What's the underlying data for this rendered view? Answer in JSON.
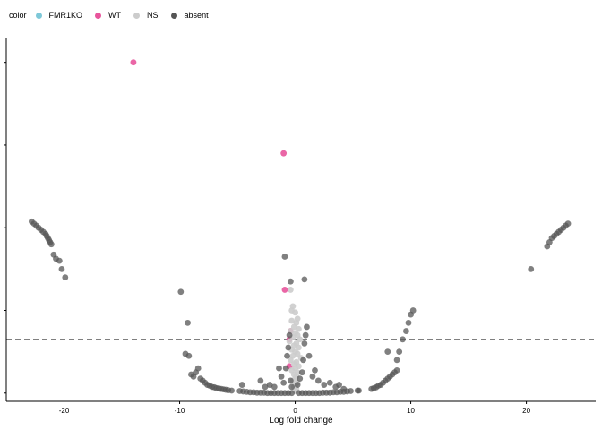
{
  "chart_data": {
    "type": "scatter",
    "title": "",
    "xlabel": "Log fold change",
    "ylabel": "",
    "xlim": [
      -25,
      26
    ],
    "ylim": [
      -0.2,
      8.6
    ],
    "x_ticks": [
      -20,
      -10,
      0,
      10,
      20
    ],
    "y_ticks": [
      0,
      2,
      4,
      6,
      8
    ],
    "y_tick_labels_visible": false,
    "threshold_line": {
      "y": 1.3,
      "style": "dashed"
    },
    "legend": {
      "title": "color",
      "placement": "top-left",
      "entries": [
        {
          "label": "FMR1KO",
          "color": "#7ec8d8"
        },
        {
          "label": "WT",
          "color": "#e8559c"
        },
        {
          "label": "NS",
          "color": "#cccccc"
        },
        {
          "label": "absent",
          "color": "#555555"
        }
      ]
    },
    "series": [
      {
        "name": "WT",
        "color": "#e8559c",
        "points": [
          [
            -14.0,
            8.0
          ],
          [
            -1.0,
            5.8
          ],
          [
            -0.9,
            2.5
          ],
          [
            -0.4,
            1.5
          ],
          [
            -0.5,
            1.3
          ],
          [
            -0.5,
            0.65
          ]
        ]
      },
      {
        "name": "NS",
        "color": "#cccccc",
        "points": [
          [
            -0.4,
            2.5
          ],
          [
            -0.2,
            2.1
          ],
          [
            -0.3,
            2.0
          ],
          [
            0.0,
            1.95
          ],
          [
            0.2,
            1.8
          ],
          [
            -0.3,
            1.75
          ],
          [
            0.1,
            1.7
          ],
          [
            -0.1,
            1.6
          ],
          [
            0.3,
            1.55
          ],
          [
            -0.4,
            1.5
          ],
          [
            0.0,
            1.45
          ],
          [
            0.2,
            1.4
          ],
          [
            -0.2,
            1.35
          ],
          [
            0.4,
            1.3
          ],
          [
            -0.5,
            1.25
          ],
          [
            0.1,
            1.2
          ],
          [
            -0.1,
            1.15
          ],
          [
            0.3,
            1.1
          ],
          [
            -0.3,
            1.05
          ],
          [
            0.0,
            1.0
          ],
          [
            0.2,
            0.95
          ],
          [
            -0.2,
            0.9
          ],
          [
            0.5,
            0.85
          ],
          [
            -0.4,
            0.8
          ],
          [
            0.1,
            0.75
          ],
          [
            -0.1,
            0.7
          ],
          [
            0.3,
            0.65
          ],
          [
            0.0,
            0.6
          ],
          [
            -0.3,
            0.55
          ],
          [
            0.2,
            0.5
          ],
          [
            -0.1,
            0.45
          ],
          [
            0.1,
            0.4
          ],
          [
            0.0,
            0.35
          ],
          [
            -0.2,
            0.3
          ],
          [
            0.2,
            0.25
          ],
          [
            0.0,
            0.2
          ],
          [
            -0.1,
            0.15
          ],
          [
            0.1,
            0.1
          ],
          [
            0.0,
            0.05
          ]
        ]
      },
      {
        "name": "absent",
        "color": "#555555",
        "points": [
          [
            -22.8,
            4.15
          ],
          [
            -22.6,
            4.1
          ],
          [
            -22.4,
            4.05
          ],
          [
            -22.2,
            4.0
          ],
          [
            -22.0,
            3.95
          ],
          [
            -21.8,
            3.9
          ],
          [
            -21.6,
            3.85
          ],
          [
            -21.5,
            3.8
          ],
          [
            -21.4,
            3.75
          ],
          [
            -21.3,
            3.7
          ],
          [
            -21.2,
            3.65
          ],
          [
            -21.1,
            3.6
          ],
          [
            -20.9,
            3.35
          ],
          [
            -20.7,
            3.25
          ],
          [
            -20.4,
            3.2
          ],
          [
            -20.2,
            3.0
          ],
          [
            -19.9,
            2.8
          ],
          [
            -9.9,
            2.45
          ],
          [
            -9.3,
            1.7
          ],
          [
            -9.5,
            0.95
          ],
          [
            -9.2,
            0.9
          ],
          [
            -9.0,
            0.45
          ],
          [
            -8.8,
            0.4
          ],
          [
            -8.6,
            0.5
          ],
          [
            -8.4,
            0.6
          ],
          [
            -8.2,
            0.35
          ],
          [
            -8.0,
            0.3
          ],
          [
            -7.8,
            0.25
          ],
          [
            -7.6,
            0.2
          ],
          [
            -7.4,
            0.18
          ],
          [
            -7.2,
            0.15
          ],
          [
            -7.0,
            0.14
          ],
          [
            -6.8,
            0.12
          ],
          [
            -6.6,
            0.11
          ],
          [
            -6.4,
            0.1
          ],
          [
            -6.2,
            0.09
          ],
          [
            -6.0,
            0.08
          ],
          [
            -5.8,
            0.07
          ],
          [
            -5.5,
            0.06
          ],
          [
            -4.8,
            0.05
          ],
          [
            -4.5,
            0.04
          ],
          [
            -4.2,
            0.03
          ],
          [
            -3.9,
            0.02
          ],
          [
            -3.6,
            0.02
          ],
          [
            -3.3,
            0.01
          ],
          [
            -3.0,
            0.01
          ],
          [
            -2.7,
            0.01
          ],
          [
            -2.4,
            0.0
          ],
          [
            -2.1,
            0.0
          ],
          [
            -1.8,
            0.0
          ],
          [
            -1.5,
            0.0
          ],
          [
            -1.2,
            0.0
          ],
          [
            -0.9,
            0.0
          ],
          [
            -0.6,
            0.0
          ],
          [
            -0.3,
            0.0
          ],
          [
            0.3,
            0.0
          ],
          [
            0.6,
            0.0
          ],
          [
            0.9,
            0.0
          ],
          [
            1.2,
            0.0
          ],
          [
            1.5,
            0.0
          ],
          [
            1.8,
            0.0
          ],
          [
            2.1,
            0.0
          ],
          [
            2.4,
            0.01
          ],
          [
            2.7,
            0.01
          ],
          [
            3.0,
            0.01
          ],
          [
            3.3,
            0.02
          ],
          [
            3.6,
            0.02
          ],
          [
            3.9,
            0.03
          ],
          [
            4.2,
            0.03
          ],
          [
            4.5,
            0.04
          ],
          [
            4.8,
            0.05
          ],
          [
            5.5,
            0.06
          ],
          [
            -4.6,
            0.2
          ],
          [
            -3.0,
            0.3
          ],
          [
            -2.2,
            0.2
          ],
          [
            -1.8,
            0.15
          ],
          [
            -1.2,
            0.4
          ],
          [
            -1.0,
            0.25
          ],
          [
            -0.8,
            0.6
          ],
          [
            -0.7,
            0.9
          ],
          [
            -0.6,
            1.1
          ],
          [
            -0.5,
            1.4
          ],
          [
            -0.4,
            0.3
          ],
          [
            -0.3,
            0.15
          ],
          [
            0.2,
            0.2
          ],
          [
            0.4,
            0.35
          ],
          [
            0.6,
            0.5
          ],
          [
            0.7,
            0.8
          ],
          [
            0.8,
            1.2
          ],
          [
            0.9,
            1.4
          ],
          [
            1.0,
            1.6
          ],
          [
            1.2,
            0.9
          ],
          [
            1.5,
            0.4
          ],
          [
            2.0,
            0.3
          ],
          [
            2.5,
            0.2
          ],
          [
            3.0,
            0.25
          ],
          [
            3.5,
            0.15
          ],
          [
            3.8,
            0.2
          ],
          [
            4.2,
            0.1
          ],
          [
            -1.4,
            0.6
          ],
          [
            -2.6,
            0.15
          ],
          [
            1.7,
            0.55
          ],
          [
            -0.9,
            3.3
          ],
          [
            0.8,
            2.75
          ],
          [
            -0.4,
            2.7
          ],
          [
            5.4,
            0.06
          ],
          [
            6.6,
            0.1
          ],
          [
            6.8,
            0.12
          ],
          [
            7.0,
            0.14
          ],
          [
            7.2,
            0.18
          ],
          [
            7.4,
            0.2
          ],
          [
            7.6,
            0.25
          ],
          [
            7.8,
            0.3
          ],
          [
            8.0,
            0.35
          ],
          [
            8.2,
            0.4
          ],
          [
            8.4,
            0.45
          ],
          [
            8.6,
            0.5
          ],
          [
            8.8,
            0.55
          ],
          [
            8.0,
            1.0
          ],
          [
            8.8,
            0.8
          ],
          [
            9.0,
            1.0
          ],
          [
            9.3,
            1.3
          ],
          [
            9.6,
            1.5
          ],
          [
            9.8,
            1.7
          ],
          [
            10.0,
            1.9
          ],
          [
            10.2,
            2.0
          ],
          [
            20.4,
            3.0
          ],
          [
            21.8,
            3.55
          ],
          [
            22.0,
            3.65
          ],
          [
            22.2,
            3.75
          ],
          [
            22.4,
            3.8
          ],
          [
            22.6,
            3.85
          ],
          [
            22.8,
            3.9
          ],
          [
            23.0,
            3.95
          ],
          [
            23.2,
            4.0
          ],
          [
            23.4,
            4.05
          ],
          [
            23.6,
            4.1
          ]
        ]
      }
    ]
  }
}
